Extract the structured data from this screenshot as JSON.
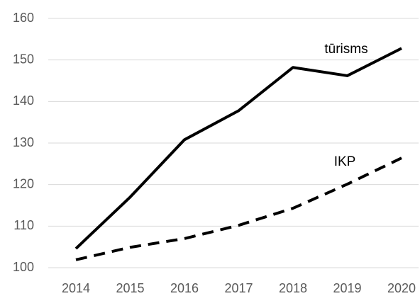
{
  "chart_data": {
    "type": "line",
    "x": [
      2014,
      2015,
      2016,
      2017,
      2018,
      2019,
      2020
    ],
    "xlim": [
      2014,
      2020
    ],
    "ylim": [
      100,
      160
    ],
    "yticks": [
      100,
      110,
      120,
      130,
      140,
      150,
      160
    ],
    "grid": true,
    "series": [
      {
        "name": "tūrisms",
        "color": "#000000",
        "dash": "solid",
        "values": [
          104.6,
          117,
          130.8,
          137.8,
          148.2,
          146.2,
          152.8
        ]
      },
      {
        "name": "IKP",
        "color": "#000000",
        "dash": "dashed",
        "values": [
          101.9,
          104.9,
          107,
          110.2,
          114.3,
          120.1,
          126.4
        ]
      }
    ]
  }
}
